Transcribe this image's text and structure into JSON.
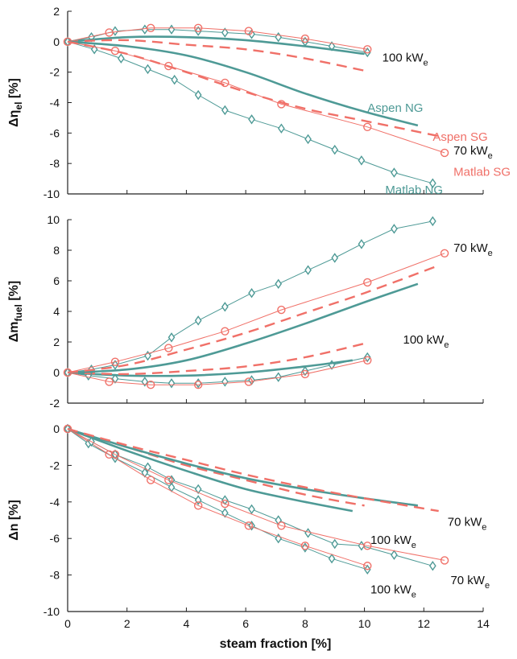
{
  "colors": {
    "ng": "#4e9a96",
    "sg": "#f07068",
    "axis": "#222222"
  },
  "chart_data": [
    {
      "type": "line",
      "ylabel_main": "Δη",
      "ylabel_sub": "el",
      "ylabel_unit": " [%]",
      "ylim": [
        -10,
        2
      ],
      "yticks": [
        "-10",
        "-8",
        "-6",
        "-4",
        "-2",
        "0",
        "2"
      ],
      "xlim": [
        0,
        14
      ],
      "series": [
        {
          "name": "Matlab NG",
          "kind": "ng_marker",
          "x": [
            0,
            0.8,
            1.6,
            2.6,
            3.5,
            4.4,
            5.3,
            6.2,
            7.1,
            8.0,
            8.9,
            10.1
          ],
          "y": [
            0,
            0.3,
            0.7,
            0.8,
            0.8,
            0.7,
            0.6,
            0.5,
            0.3,
            0.0,
            -0.3,
            -0.7
          ]
        },
        {
          "name": "Matlab SG",
          "kind": "sg_marker",
          "x": [
            0,
            1.4,
            2.8,
            4.4,
            6.1,
            8.0,
            10.1
          ],
          "y": [
            0,
            0.6,
            0.9,
            0.9,
            0.7,
            0.2,
            -0.5
          ]
        },
        {
          "name": "Aspen NG",
          "kind": "ng_solid",
          "x": [
            0,
            2,
            4,
            6,
            8,
            10
          ],
          "y": [
            0,
            0.3,
            0.3,
            0.1,
            -0.3,
            -0.8
          ]
        },
        {
          "name": "Aspen SG",
          "kind": "sg_dash",
          "x": [
            0,
            2,
            4,
            6,
            8,
            10
          ],
          "y": [
            0,
            0.1,
            -0.2,
            -0.5,
            -1.1,
            -1.9
          ]
        },
        {
          "name": "Matlab NG",
          "kind": "ng_marker",
          "x": [
            0,
            0.9,
            1.8,
            2.7,
            3.6,
            4.4,
            5.3,
            6.2,
            7.2,
            8.1,
            9.0,
            9.9,
            11.0,
            12.3
          ],
          "y": [
            0,
            -0.5,
            -1.1,
            -1.8,
            -2.5,
            -3.5,
            -4.5,
            -5.1,
            -5.7,
            -6.4,
            -7.1,
            -7.8,
            -8.6,
            -9.3
          ]
        },
        {
          "name": "Matlab SG",
          "kind": "sg_marker",
          "x": [
            0,
            1.6,
            3.4,
            5.3,
            7.2,
            10.1,
            12.7
          ],
          "y": [
            0,
            -0.6,
            -1.6,
            -2.7,
            -4.1,
            -5.6,
            -7.3
          ]
        },
        {
          "name": "Aspen NG",
          "kind": "ng_solid",
          "x": [
            0,
            2,
            4,
            6,
            8,
            10,
            11.8
          ],
          "y": [
            0,
            -0.3,
            -0.9,
            -2.0,
            -3.4,
            -4.6,
            -5.5
          ]
        },
        {
          "name": "Aspen SG",
          "kind": "sg_dash",
          "x": [
            0,
            2,
            4,
            6,
            8,
            10,
            12.5
          ],
          "y": [
            0,
            -0.8,
            -2.0,
            -3.3,
            -4.4,
            -5.2,
            -6.2
          ]
        }
      ],
      "annotations": [
        {
          "text": "100 kW",
          "sub": "e",
          "x": 10.6,
          "y": -1.3,
          "kind": "black"
        },
        {
          "text": "Aspen NG",
          "sub": "",
          "x": 10.1,
          "y": -4.6,
          "kind": "ng"
        },
        {
          "text": "Aspen SG",
          "sub": "",
          "x": 12.3,
          "y": -6.5,
          "kind": "sg"
        },
        {
          "text": "70 kW",
          "sub": "e",
          "x": 13.0,
          "y": -7.4,
          "kind": "black"
        },
        {
          "text": "Matlab SG",
          "sub": "",
          "x": 13.0,
          "y": -8.8,
          "kind": "sg"
        },
        {
          "text": "Matlab NG",
          "sub": "",
          "x": 10.7,
          "y": -10.0,
          "kind": "ng"
        }
      ]
    },
    {
      "type": "line",
      "ylabel_main": "Δm",
      "ylabel_sub": "fuel",
      "ylabel_unit": " [%]",
      "ylim": [
        -2,
        10
      ],
      "yticks": [
        "-2",
        "0",
        "2",
        "4",
        "6",
        "8",
        "10"
      ],
      "xlim": [
        0,
        14
      ],
      "series": [
        {
          "name": "Matlab NG",
          "kind": "ng_marker",
          "x": [
            0,
            0.7,
            1.6,
            2.6,
            3.5,
            4.4,
            5.3,
            6.2,
            7.1,
            8.0,
            8.9,
            10.1
          ],
          "y": [
            0,
            -0.2,
            -0.4,
            -0.6,
            -0.7,
            -0.7,
            -0.6,
            -0.5,
            -0.3,
            0.1,
            0.5,
            1.0
          ]
        },
        {
          "name": "Matlab SG",
          "kind": "sg_marker",
          "x": [
            0,
            1.4,
            2.8,
            4.4,
            6.1,
            8.0,
            10.1
          ],
          "y": [
            0,
            -0.6,
            -0.8,
            -0.8,
            -0.6,
            -0.1,
            0.8
          ]
        },
        {
          "name": "Aspen NG",
          "kind": "ng_solid",
          "x": [
            0,
            2,
            4,
            6,
            8,
            9.6
          ],
          "y": [
            0,
            -0.2,
            -0.2,
            0,
            0.4,
            0.8
          ]
        },
        {
          "name": "Aspen SG",
          "kind": "sg_dash",
          "x": [
            0,
            2,
            4,
            6,
            8,
            10
          ],
          "y": [
            0,
            -0.1,
            0.1,
            0.4,
            1.0,
            1.9
          ]
        },
        {
          "name": "Matlab NG",
          "kind": "ng_marker",
          "x": [
            0,
            0.8,
            1.6,
            2.7,
            3.5,
            4.4,
            5.3,
            6.2,
            7.1,
            8.1,
            9.0,
            9.9,
            11.0,
            12.3
          ],
          "y": [
            0,
            0.2,
            0.5,
            1.1,
            2.3,
            3.4,
            4.3,
            5.2,
            5.8,
            6.7,
            7.5,
            8.4,
            9.4,
            9.9
          ]
        },
        {
          "name": "Matlab SG",
          "kind": "sg_marker",
          "x": [
            0,
            1.6,
            3.4,
            5.3,
            7.2,
            10.1,
            12.7
          ],
          "y": [
            0,
            0.7,
            1.6,
            2.7,
            4.1,
            5.9,
            7.8
          ]
        },
        {
          "name": "Aspen NG",
          "kind": "ng_solid",
          "x": [
            0,
            2,
            4,
            6,
            8,
            10,
            11.8
          ],
          "y": [
            0,
            0.2,
            0.8,
            1.9,
            3.2,
            4.6,
            5.8
          ]
        },
        {
          "name": "Aspen SG",
          "kind": "sg_dash",
          "x": [
            0,
            2,
            4,
            6,
            8,
            10,
            12.5
          ],
          "y": [
            0,
            0.5,
            1.5,
            2.6,
            3.9,
            5.2,
            7.0
          ]
        }
      ],
      "annotations": [
        {
          "text": "70 kW",
          "sub": "e",
          "x": 13.0,
          "y": 7.9,
          "kind": "black"
        },
        {
          "text": "100 kW",
          "sub": "e",
          "x": 11.3,
          "y": 1.9,
          "kind": "black"
        }
      ]
    },
    {
      "type": "line",
      "ylabel_main": "Δn",
      "ylabel_sub": "",
      "ylabel_unit": " [%]",
      "ylim": [
        -10,
        0
      ],
      "yticks": [
        "-10",
        "-8",
        "-6",
        "-4",
        "-2",
        "0"
      ],
      "xlim": [
        0,
        14
      ],
      "xticks": [
        "0",
        "2",
        "4",
        "6",
        "8",
        "10",
        "12",
        "14"
      ],
      "xlabel": "steam fraction [%]",
      "series": [
        {
          "name": "Matlab NG",
          "kind": "ng_marker",
          "x": [
            0,
            0.7,
            1.6,
            2.6,
            3.5,
            4.4,
            5.3,
            6.2,
            7.1,
            8.0,
            8.9,
            10.1
          ],
          "y": [
            0,
            -0.8,
            -1.6,
            -2.4,
            -3.2,
            -3.9,
            -4.6,
            -5.3,
            -6.0,
            -6.5,
            -7.1,
            -7.7
          ]
        },
        {
          "name": "Matlab SG",
          "kind": "sg_marker",
          "x": [
            0,
            1.4,
            2.8,
            4.4,
            6.1,
            8.0,
            10.1
          ],
          "y": [
            0,
            -1.4,
            -2.8,
            -4.2,
            -5.3,
            -6.4,
            -7.5
          ]
        },
        {
          "name": "Aspen NG",
          "kind": "ng_solid",
          "x": [
            0,
            2,
            4,
            6,
            8,
            9.6
          ],
          "y": [
            0,
            -1.2,
            -2.3,
            -3.3,
            -4.0,
            -4.5
          ]
        },
        {
          "name": "Aspen SG",
          "kind": "sg_dash",
          "x": [
            0,
            2,
            4,
            6,
            8,
            10
          ],
          "y": [
            0,
            -1.0,
            -2.0,
            -2.8,
            -3.6,
            -4.2
          ]
        },
        {
          "name": "Matlab NG",
          "kind": "ng_marker",
          "x": [
            0,
            0.8,
            1.6,
            2.7,
            3.5,
            4.4,
            5.3,
            6.2,
            7.1,
            8.1,
            9.0,
            9.9,
            11.0,
            12.3
          ],
          "y": [
            0,
            -0.7,
            -1.4,
            -2.1,
            -2.8,
            -3.3,
            -3.9,
            -4.4,
            -5.0,
            -5.7,
            -6.3,
            -6.4,
            -6.9,
            -7.5
          ]
        },
        {
          "name": "Matlab SG",
          "kind": "sg_marker",
          "x": [
            0,
            1.6,
            3.4,
            5.3,
            7.2,
            10.1,
            12.7
          ],
          "y": [
            0,
            -1.4,
            -2.8,
            -4.1,
            -5.3,
            -6.4,
            -7.2
          ]
        },
        {
          "name": "Aspen NG",
          "kind": "ng_solid",
          "x": [
            0,
            2,
            4,
            6,
            8,
            10,
            11.8
          ],
          "y": [
            0,
            -1.0,
            -1.9,
            -2.7,
            -3.3,
            -3.8,
            -4.2
          ]
        },
        {
          "name": "Aspen SG",
          "kind": "sg_dash",
          "x": [
            0,
            2,
            4,
            6,
            8,
            10,
            12.5
          ],
          "y": [
            0,
            -0.9,
            -1.7,
            -2.5,
            -3.2,
            -3.8,
            -4.5
          ]
        }
      ],
      "annotations": [
        {
          "text": "70 kW",
          "sub": "e",
          "x": 12.8,
          "y": -5.3,
          "kind": "black"
        },
        {
          "text": "100 kW",
          "sub": "e",
          "x": 10.2,
          "y": -6.3,
          "kind": "black"
        },
        {
          "text": "70 kW",
          "sub": "e",
          "x": 12.9,
          "y": -8.5,
          "kind": "black"
        },
        {
          "text": "100 kW",
          "sub": "e",
          "x": 10.2,
          "y": -9.0,
          "kind": "black"
        }
      ]
    }
  ]
}
